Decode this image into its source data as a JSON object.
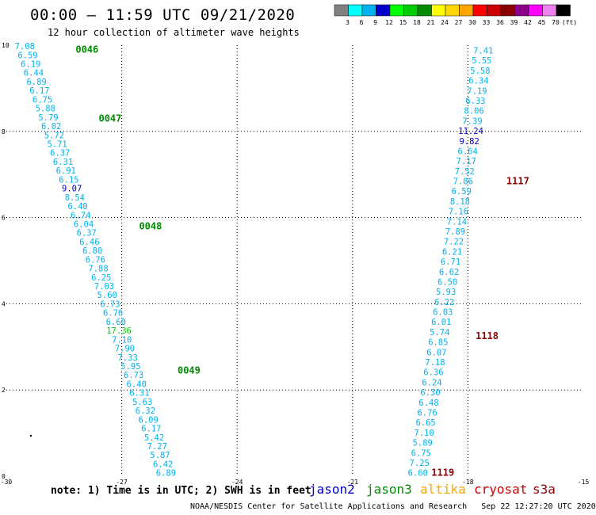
{
  "header": {
    "title": "00:00 – 11:59 UTC 09/21/2020",
    "subtitle": "12 hour collection of altimeter wave heights"
  },
  "colorbar": {
    "labels": [
      "3",
      "6",
      "9",
      "12",
      "15",
      "18",
      "21",
      "24",
      "27",
      "30",
      "33",
      "36",
      "39",
      "42",
      "45",
      "70",
      "(ft)"
    ],
    "colors": [
      "#808080",
      "#00ffff",
      "#00b2ee",
      "#0000cd",
      "#00ff00",
      "#00cd00",
      "#008b00",
      "#ffff00",
      "#ffd700",
      "#ffa500",
      "#ff0000",
      "#cd0000",
      "#8b0000",
      "#8b008b",
      "#ff00ff",
      "#ee82ee",
      "#000000"
    ]
  },
  "footer": {
    "note": "note: 1) Time is in UTC; 2) SWH is in feet",
    "credit": "NOAA/NESDIS Center for Satellite Applications and Research   Sep 22 12:27:20 UTC 2020"
  },
  "legend": [
    {
      "name": "jason2",
      "color": "#0000cd"
    },
    {
      "name": "jason3",
      "color": "#008b00"
    },
    {
      "name": "altika",
      "color": "#ffa500"
    },
    {
      "name": "cryosat",
      "color": "#cd0000"
    },
    {
      "name": "s3a",
      "color": "#8b0000"
    }
  ],
  "chart_data": {
    "type": "scatter",
    "title": "00:00 – 11:59 UTC 09/21/2020",
    "subtitle": "12 hour collection of altimeter wave heights",
    "xlim": [
      -30,
      -15
    ],
    "ylim": [
      0,
      10
    ],
    "x_ticks": [
      -30,
      -27,
      -24,
      -21,
      -18,
      -15
    ],
    "y_ticks": [
      0,
      2,
      4,
      6,
      8,
      10
    ],
    "grid": true,
    "units": "ft",
    "color_scale": [
      {
        "max": 3,
        "color": "#808080"
      },
      {
        "max": 6,
        "color": "#00ffff"
      },
      {
        "max": 9,
        "color": "#00b2ee"
      },
      {
        "max": 12,
        "color": "#0000cd"
      },
      {
        "max": 15,
        "color": "#00ff00"
      },
      {
        "max": 18,
        "color": "#00cd00"
      },
      {
        "max": 21,
        "color": "#008b00"
      },
      {
        "max": 24,
        "color": "#ffff00"
      },
      {
        "max": 27,
        "color": "#ffd700"
      },
      {
        "max": 30,
        "color": "#ffa500"
      },
      {
        "max": 33,
        "color": "#ff0000"
      },
      {
        "max": 36,
        "color": "#cd0000"
      },
      {
        "max": 39,
        "color": "#8b0000"
      },
      {
        "max": 42,
        "color": "#8b008b"
      },
      {
        "max": 45,
        "color": "#ff00ff"
      },
      {
        "max": 70,
        "color": "#ee82ee"
      }
    ],
    "tracks": [
      {
        "x_start": -29.52,
        "x_end": -25.85,
        "y_start": 9.98,
        "y_end": 0.08,
        "values": [
          "7.08",
          "6.59",
          "6.19",
          "6.44",
          "6.89",
          "6.17",
          "6.75",
          "5.88",
          "5.79",
          "6.02",
          "5.72",
          "5.71",
          "6.37",
          "6.31",
          "6.91",
          "6.15",
          "9.07",
          "8.54",
          "6.40",
          "6.74",
          "6.04",
          "6.37",
          "6.46",
          "6.80",
          "6.76",
          "7.88",
          "6.25",
          "7.03",
          "5.60",
          "6.73",
          "6.76",
          "6.60",
          "17.36",
          "7.10",
          "7.90",
          "7.33",
          "5.95",
          "6.73",
          "6.40",
          "6.31",
          "5.63",
          "6.32",
          "6.09",
          "6.17",
          "5.42",
          "7.27",
          "5.87",
          "6.42",
          "6.89"
        ],
        "colors": [
          "#00b2ee",
          "#00b2ee",
          "#00b2ee",
          "#00b2ee",
          "#00b2ee",
          "#00b2ee",
          "#00b2ee",
          "#00b2ee",
          "#00b2ee",
          "#00b2ee",
          "#00b2ee",
          "#00b2ee",
          "#00b2ee",
          "#00b2ee",
          "#00b2ee",
          "#00b2ee",
          "#0000cd",
          "#00b2ee",
          "#00b2ee",
          "#00b2ee",
          "#00b2ee",
          "#00b2ee",
          "#00b2ee",
          "#00b2ee",
          "#00b2ee",
          "#00b2ee",
          "#00b2ee",
          "#00b2ee",
          "#00b2ee",
          "#00b2ee",
          "#00b2ee",
          "#00b2ee",
          "#00cd00",
          "#00b2ee",
          "#00b2ee",
          "#00b2ee",
          "#00b2ee",
          "#00b2ee",
          "#00b2ee",
          "#00b2ee",
          "#00b2ee",
          "#00b2ee",
          "#00b2ee",
          "#00b2ee",
          "#00b2ee",
          "#00b2ee",
          "#00b2ee",
          "#00b2ee",
          "#00b2ee"
        ],
        "pass_labels": [
          {
            "text": "0046",
            "x": -28.2,
            "y": 9.9,
            "color": "#008b00"
          },
          {
            "text": "0047",
            "x": -27.6,
            "y": 8.3,
            "color": "#008b00"
          },
          {
            "text": "0048",
            "x": -26.55,
            "y": 5.8,
            "color": "#008b00"
          },
          {
            "text": "0049",
            "x": -25.55,
            "y": 2.45,
            "color": "#008b00"
          }
        ]
      },
      {
        "x_start": -17.6,
        "x_end": -19.3,
        "y_start": 9.88,
        "y_end": 0.08,
        "values": [
          "7.41",
          "5.55",
          "5.58",
          "6.34",
          "7.19",
          "6.33",
          "8.06",
          "7.39",
          "11.24",
          "9.82",
          "6.64",
          "7.17",
          "7.52",
          "7.86",
          "6.59",
          "8.18",
          "7.16",
          "7.14",
          "7.89",
          "7.22",
          "6.21",
          "6.71",
          "6.62",
          "6.50",
          "5.93",
          "6.22",
          "6.03",
          "6.01",
          "5.74",
          "6.85",
          "6.07",
          "7.18",
          "6.36",
          "6.24",
          "6.30",
          "6.48",
          "6.76",
          "6.65",
          "7.10",
          "5.89",
          "6.75",
          "7.25",
          "6.60"
        ],
        "colors": [
          "#00b2ee",
          "#00b2ee",
          "#00b2ee",
          "#00b2ee",
          "#00b2ee",
          "#00b2ee",
          "#00b2ee",
          "#00b2ee",
          "#0000cd",
          "#0000cd",
          "#00b2ee",
          "#00b2ee",
          "#00b2ee",
          "#00b2ee",
          "#00b2ee",
          "#00b2ee",
          "#00b2ee",
          "#00b2ee",
          "#00b2ee",
          "#00b2ee",
          "#00b2ee",
          "#00b2ee",
          "#00b2ee",
          "#00b2ee",
          "#00b2ee",
          "#00b2ee",
          "#00b2ee",
          "#00b2ee",
          "#00b2ee",
          "#00b2ee",
          "#00b2ee",
          "#00b2ee",
          "#00b2ee",
          "#00b2ee",
          "#00b2ee",
          "#00b2ee",
          "#00b2ee",
          "#00b2ee",
          "#00b2ee",
          "#00b2ee",
          "#00b2ee",
          "#00b2ee",
          "#00b2ee"
        ],
        "pass_labels": [
          {
            "text": "1117",
            "x": -17.0,
            "y": 6.85,
            "color": "#8b0000"
          },
          {
            "text": "1118",
            "x": -17.8,
            "y": 3.25,
            "color": "#8b0000"
          },
          {
            "text": "1119",
            "x": -18.95,
            "y": 0.08,
            "color": "#8b0000"
          }
        ]
      }
    ]
  }
}
